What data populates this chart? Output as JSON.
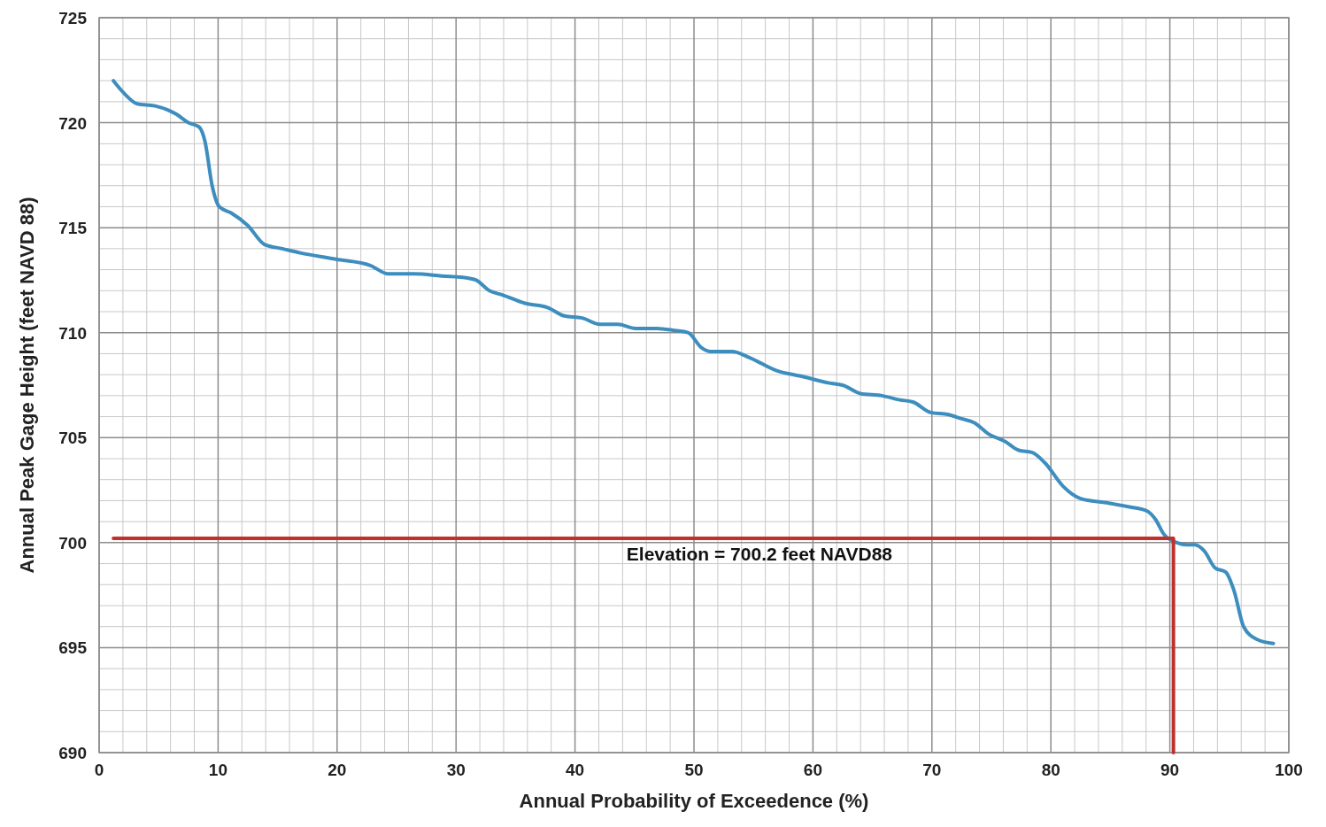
{
  "chart_data": {
    "type": "line",
    "xlabel": "Annual Probability of Exceedence (%)",
    "ylabel": "Annual Peak Gage Height (feet NAVD 88)",
    "xlim": [
      0,
      100
    ],
    "ylim": [
      690,
      725
    ],
    "xticks": [
      0,
      10,
      20,
      30,
      40,
      50,
      60,
      70,
      80,
      90,
      100
    ],
    "yticks": [
      690,
      695,
      700,
      705,
      710,
      715,
      720,
      725
    ],
    "grid": true,
    "series": [
      {
        "color": "#3d8ebf",
        "x": [
          1.2,
          2.1,
          3.2,
          4.7,
          5.8,
          6.5,
          7.5,
          8.4,
          8.9,
          9.5,
          10.1,
          11.1,
          12.5,
          13.9,
          15.4,
          16.9,
          19.9,
          22.8,
          24.3,
          26.5,
          28.8,
          31.0,
          31.7,
          32.8,
          33.9,
          35.8,
          37.7,
          39.1,
          40.6,
          42.1,
          43.6,
          45.1,
          46.9,
          48.4,
          49.5,
          50.6,
          51.4,
          53.2,
          54.7,
          56.9,
          59.2,
          61.4,
          62.5,
          64.0,
          65.8,
          67.3,
          68.4,
          69.9,
          71.4,
          72.5,
          73.6,
          74.7,
          76.2,
          77.3,
          78.4,
          79.5,
          81.0,
          82.5,
          84.7,
          86.6,
          88.1,
          88.8,
          89.5,
          90.6,
          91.4,
          92.1,
          92.9,
          93.8,
          94.7,
          95.4,
          96.2,
          97.3,
          98.7
        ],
        "values": [
          722.0,
          721.4,
          720.9,
          720.8,
          720.6,
          720.4,
          720.0,
          719.8,
          719.1,
          717.0,
          716.0,
          715.7,
          715.1,
          714.2,
          714.0,
          713.8,
          713.5,
          713.2,
          712.8,
          712.8,
          712.7,
          712.6,
          712.5,
          712.0,
          711.8,
          711.4,
          711.2,
          710.8,
          710.7,
          710.4,
          710.4,
          710.2,
          710.2,
          710.1,
          710.0,
          709.3,
          709.1,
          709.1,
          708.8,
          708.2,
          707.9,
          707.6,
          707.5,
          707.1,
          707.0,
          706.8,
          706.7,
          706.2,
          706.1,
          705.9,
          705.7,
          705.2,
          704.8,
          704.4,
          704.3,
          703.8,
          702.7,
          702.1,
          701.9,
          701.7,
          701.5,
          701.1,
          700.4,
          700.0,
          699.9,
          699.9,
          699.6,
          698.8,
          698.6,
          697.7,
          696.0,
          695.4,
          695.2
        ]
      },
      {
        "color": "#c0302c",
        "x": [
          1.2,
          90.3,
          90.3
        ],
        "values": [
          700.2,
          700.2,
          690
        ]
      }
    ],
    "annotations": [
      "Elevation = 700.2 feet NAVD88"
    ]
  }
}
